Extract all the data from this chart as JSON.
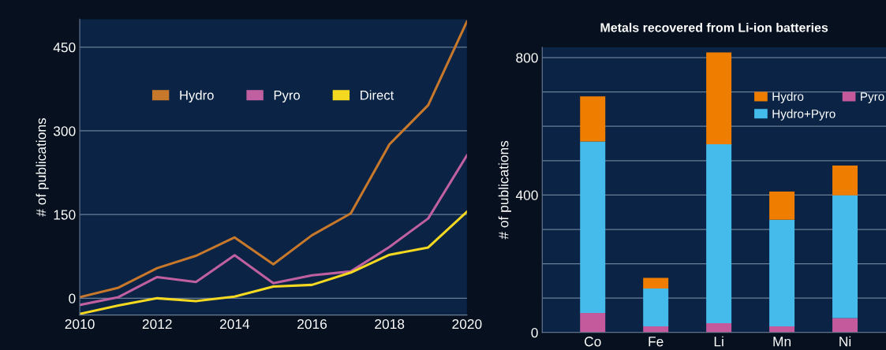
{
  "chart_data": [
    {
      "type": "line",
      "ylabel": "# of publications",
      "x": [
        2010,
        2011,
        2012,
        2013,
        2014,
        2015,
        2016,
        2017,
        2018,
        2019,
        2020
      ],
      "series": [
        {
          "name": "Hydro",
          "color": "#c8782a",
          "values": [
            2,
            19,
            54,
            76,
            109,
            61,
            113,
            152,
            276,
            346,
            496
          ]
        },
        {
          "name": "Pyro",
          "color": "#c060a0",
          "values": [
            -12,
            2,
            38,
            29,
            77,
            27,
            41,
            48,
            92,
            143,
            256
          ]
        },
        {
          "name": "Direct",
          "color": "#f5d820",
          "values": [
            -28,
            -13,
            0,
            -5,
            3,
            21,
            24,
            46,
            78,
            91,
            155
          ]
        }
      ],
      "xlim": [
        2010,
        2020
      ],
      "xticks": [
        2010,
        2012,
        2014,
        2016,
        2018,
        2020
      ],
      "ylim": [
        -30,
        500
      ],
      "yticks": [
        0,
        150,
        300,
        450
      ],
      "grid": "y",
      "legend": "top",
      "marker": "none",
      "line_style": "solid"
    },
    {
      "type": "bar",
      "title": "Metals recovered from Li-ion batteries",
      "ylabel": "# of publications",
      "categories": [
        "Co",
        "Fe",
        "Li",
        "Mn",
        "Ni"
      ],
      "stacked": true,
      "series": [
        {
          "name": "Pyro",
          "color": "#c45a9c",
          "values": [
            57,
            18,
            27,
            18,
            42
          ]
        },
        {
          "name": "Hydro+Pyro",
          "color": "#45bbec",
          "values": [
            499,
            110,
            521,
            310,
            357
          ]
        },
        {
          "name": "Hydro",
          "color": "#ee7d00",
          "values": [
            131,
            31,
            267,
            82,
            87
          ]
        }
      ],
      "ylim": [
        0,
        830
      ],
      "yticks": [
        0,
        {
          "value": 100,
          "label": null
        },
        {
          "value": 200,
          "label": null
        },
        {
          "value": 300,
          "label": null
        },
        400,
        {
          "value": 500,
          "label": null
        },
        {
          "value": 600,
          "label": null
        },
        {
          "value": 700,
          "label": null
        },
        800
      ],
      "grid": "y",
      "legend": "top right"
    }
  ]
}
